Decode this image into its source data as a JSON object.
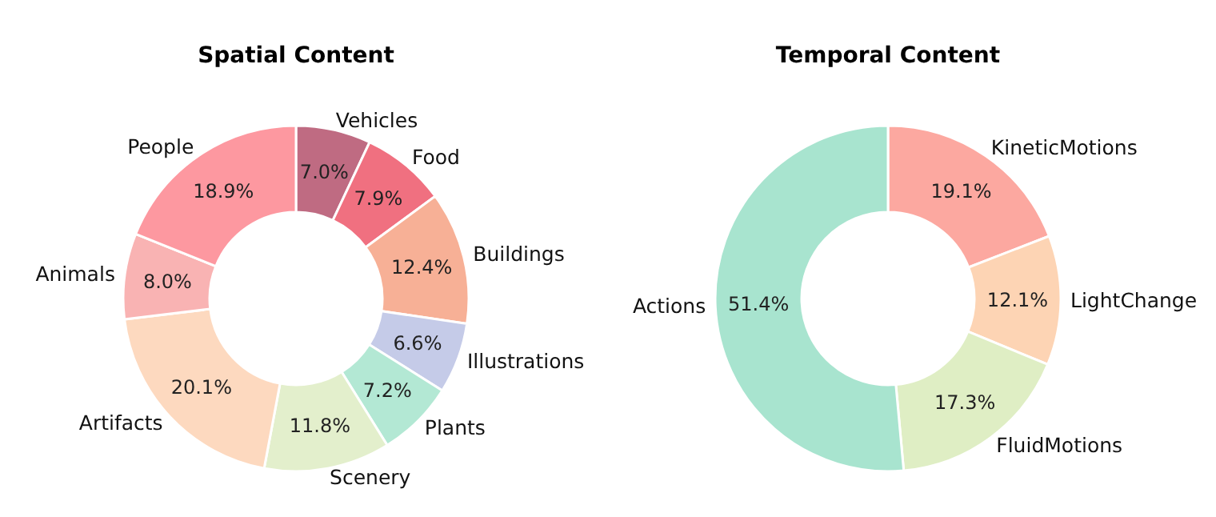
{
  "chart_data": [
    {
      "type": "donut",
      "title": "Spatial Content",
      "categories": [
        "Vehicles",
        "Food",
        "Buildings",
        "Illustrations",
        "Plants",
        "Scenery",
        "Artifacts",
        "Animals",
        "People"
      ],
      "values": [
        7.0,
        7.9,
        12.4,
        6.6,
        7.2,
        11.8,
        20.1,
        8.0,
        18.9
      ],
      "colors": [
        "#bf6b82",
        "#f07080",
        "#f7b096",
        "#c5cbe8",
        "#b3e8d4",
        "#e3efcc",
        "#fdd9bf",
        "#f9b3b3",
        "#fd98a0"
      ],
      "value_labels": [
        "7.0%",
        "7.9%",
        "12.4%",
        "6.6%",
        "7.2%",
        "11.8%",
        "20.1%",
        "8.0%",
        "18.9%"
      ],
      "legend": false
    },
    {
      "type": "donut",
      "title": "Temporal Content",
      "categories": [
        "KineticMotions",
        "LightChange",
        "FluidMotions",
        "Actions"
      ],
      "values": [
        19.1,
        12.1,
        17.3,
        51.4
      ],
      "colors": [
        "#fca8a0",
        "#fdd4b4",
        "#dfeec4",
        "#a8e4cf"
      ],
      "value_labels": [
        "19.1%",
        "12.1%",
        "17.3%",
        "51.4%"
      ],
      "legend": false
    }
  ]
}
